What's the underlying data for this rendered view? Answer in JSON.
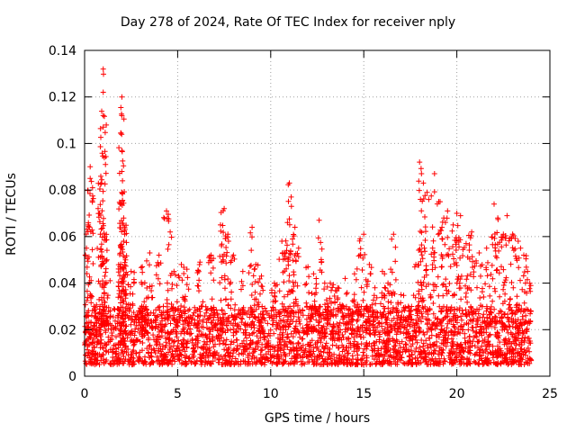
{
  "chart_data": {
    "type": "scatter",
    "title": "Day 278 of 2024, Rate Of TEC Index for receiver nply",
    "xlabel": "GPS time / hours",
    "ylabel": "ROTI / TECUs",
    "xlim": [
      0,
      25
    ],
    "ylim": [
      0,
      0.14
    ],
    "xticks": [
      0,
      5,
      10,
      15,
      20,
      25
    ],
    "xtick_labels": [
      "0",
      "5",
      "10",
      "15",
      "20",
      "25"
    ],
    "yticks": [
      0,
      0.02,
      0.04,
      0.06,
      0.08,
      0.1,
      0.12,
      0.14
    ],
    "ytick_labels": [
      "0",
      "0.02",
      "0.04",
      "0.06",
      "0.08",
      "0.1",
      "0.12",
      "0.14"
    ],
    "grid": true,
    "marker": "+",
    "series": [
      {
        "name": "ROTI",
        "color": "#ff0000",
        "x": [
          0.1,
          0.3,
          0.3,
          0.2,
          0.5,
          0.8,
          1.0,
          1.0,
          1.0,
          1.0,
          0.9,
          1.1,
          1.2,
          2.0,
          2.0,
          2.0,
          2.0,
          2.0,
          2.1,
          2.1,
          1.9,
          2.2,
          2.5,
          3.1,
          3.2,
          3.5,
          4.0,
          4.4,
          4.6,
          4.8,
          5.2,
          5.5,
          6.2,
          6.8,
          7.3,
          7.5,
          7.7,
          8.0,
          8.5,
          9.0,
          9.2,
          9.5,
          10.2,
          10.6,
          10.9,
          11.0,
          11.1,
          11.3,
          11.5,
          12.0,
          12.3,
          12.6,
          12.9,
          13.2,
          13.6,
          14.0,
          14.5,
          14.8,
          15.0,
          15.3,
          15.6,
          16.0,
          16.3,
          16.6,
          17.0,
          17.4,
          17.8,
          18.0,
          18.1,
          18.2,
          18.4,
          18.7,
          18.8,
          19.1,
          19.3,
          19.5,
          19.8,
          20.0,
          20.2,
          20.5,
          20.8,
          21.2,
          21.6,
          22.0,
          22.2,
          22.5,
          22.7,
          23.0,
          23.3,
          23.6,
          23.8
        ],
        "y": [
          0.055,
          0.085,
          0.09,
          0.065,
          0.03,
          0.07,
          0.132,
          0.122,
          0.112,
          0.107,
          0.083,
          0.06,
          0.05,
          0.12,
          0.112,
          0.097,
          0.088,
          0.079,
          0.068,
          0.058,
          0.047,
          0.05,
          0.045,
          0.047,
          0.032,
          0.053,
          0.052,
          0.071,
          0.062,
          0.045,
          0.048,
          0.046,
          0.049,
          0.052,
          0.065,
          0.072,
          0.061,
          0.052,
          0.045,
          0.064,
          0.048,
          0.043,
          0.04,
          0.058,
          0.066,
          0.083,
          0.077,
          0.064,
          0.055,
          0.047,
          0.044,
          0.067,
          0.04,
          0.04,
          0.038,
          0.042,
          0.044,
          0.059,
          0.061,
          0.048,
          0.038,
          0.045,
          0.04,
          0.061,
          0.035,
          0.03,
          0.048,
          0.092,
          0.087,
          0.083,
          0.079,
          0.055,
          0.087,
          0.075,
          0.068,
          0.071,
          0.065,
          0.07,
          0.069,
          0.057,
          0.062,
          0.053,
          0.055,
          0.074,
          0.068,
          0.061,
          0.069,
          0.061,
          0.058,
          0.052,
          0.045
        ],
        "baseline_band": [
          0.005,
          0.03
        ]
      }
    ]
  }
}
